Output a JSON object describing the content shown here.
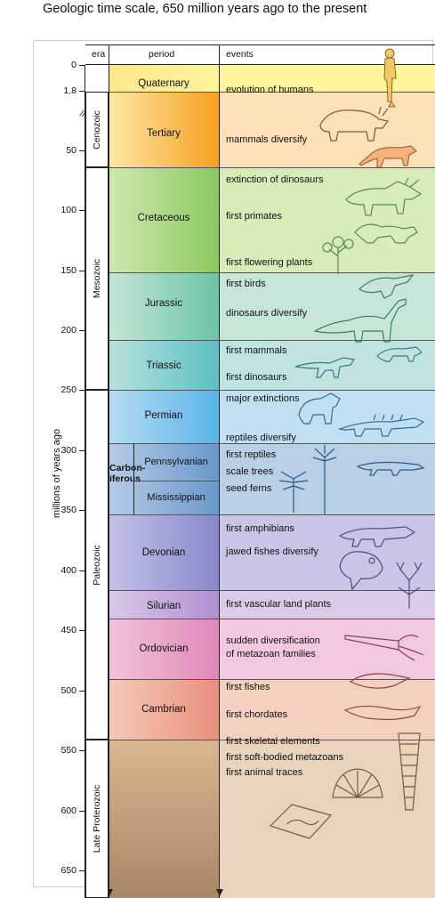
{
  "title": "Geologic time scale, 650 million years ago to the present",
  "headers": {
    "era": "era",
    "period": "period",
    "events": "events"
  },
  "y_axis_label": "millions of years ago",
  "ticks": [
    "0",
    "1.8",
    "50",
    "100",
    "150",
    "200",
    "250",
    "300",
    "350",
    "400",
    "450",
    "500",
    "550",
    "600",
    "650"
  ],
  "eras": [
    "Cenozoic",
    "Mesozoic",
    "Paleozoic",
    "Late Proterozoic"
  ],
  "periods": [
    "Quaternary",
    "Tertiary",
    "Cretaceous",
    "Jurassic",
    "Triassic",
    "Permian",
    "Pennsylvanian",
    "Mississippian",
    "Devonian",
    "Silurian",
    "Ordovician",
    "Cambrian"
  ],
  "carboniferous_label": [
    "Carbon-",
    "iferous"
  ],
  "events": {
    "quaternary": [
      "evolution of humans"
    ],
    "tertiary": [
      "mammals diversify"
    ],
    "cretaceous": [
      "extinction of dinosaurs",
      "first primates",
      "first flowering plants"
    ],
    "jurassic": [
      "first birds",
      "dinosaurs diversify"
    ],
    "triassic": [
      "first mammals",
      "first dinosaurs"
    ],
    "permian": [
      "major extinctions",
      "reptiles diversify"
    ],
    "carboniferous": [
      "first reptiles",
      "scale trees",
      "seed ferns"
    ],
    "devonian": [
      "first amphibians",
      "jawed fishes diversify"
    ],
    "silurian": [
      "first vascular land plants"
    ],
    "ordovician": [
      "sudden diversification",
      "of metazoan families"
    ],
    "cambrian": [
      "first fishes",
      "first chordates"
    ],
    "proterozoic": [
      "first skeletal elements",
      "first soft-bodied metazoans",
      "first animal traces"
    ]
  },
  "illustrations": [
    "human-figure",
    "rhino-mammal",
    "cat-mammal",
    "triceratops",
    "primate",
    "flowering-plant",
    "bird",
    "sauropod",
    "mammal-small",
    "dinosaur-small",
    "mammal-like-reptile",
    "spiny-reptile",
    "scale-tree",
    "seed-fern",
    "early-reptile",
    "amphibian",
    "jawed-fish",
    "vascular-plant",
    "nautiloid",
    "trilobite-fish",
    "chordate",
    "shell",
    "cone-shell",
    "trace-slab"
  ],
  "colors": {
    "quaternary": "#fdf49c",
    "tertiary": "#fbe0b8",
    "cretaceous": "#d8ecb8",
    "jurassic": "#c8e6d8",
    "triassic": "#bfe3e0",
    "permian": "#bfe0f2",
    "carboniferous": "#b9cfe6",
    "devonian": "#c8c6e6",
    "silurian": "#dccbe8",
    "ordovician": "#f2c9de",
    "cambrian": "#f5cfc0",
    "proterozoic": "#e8d4bc"
  }
}
